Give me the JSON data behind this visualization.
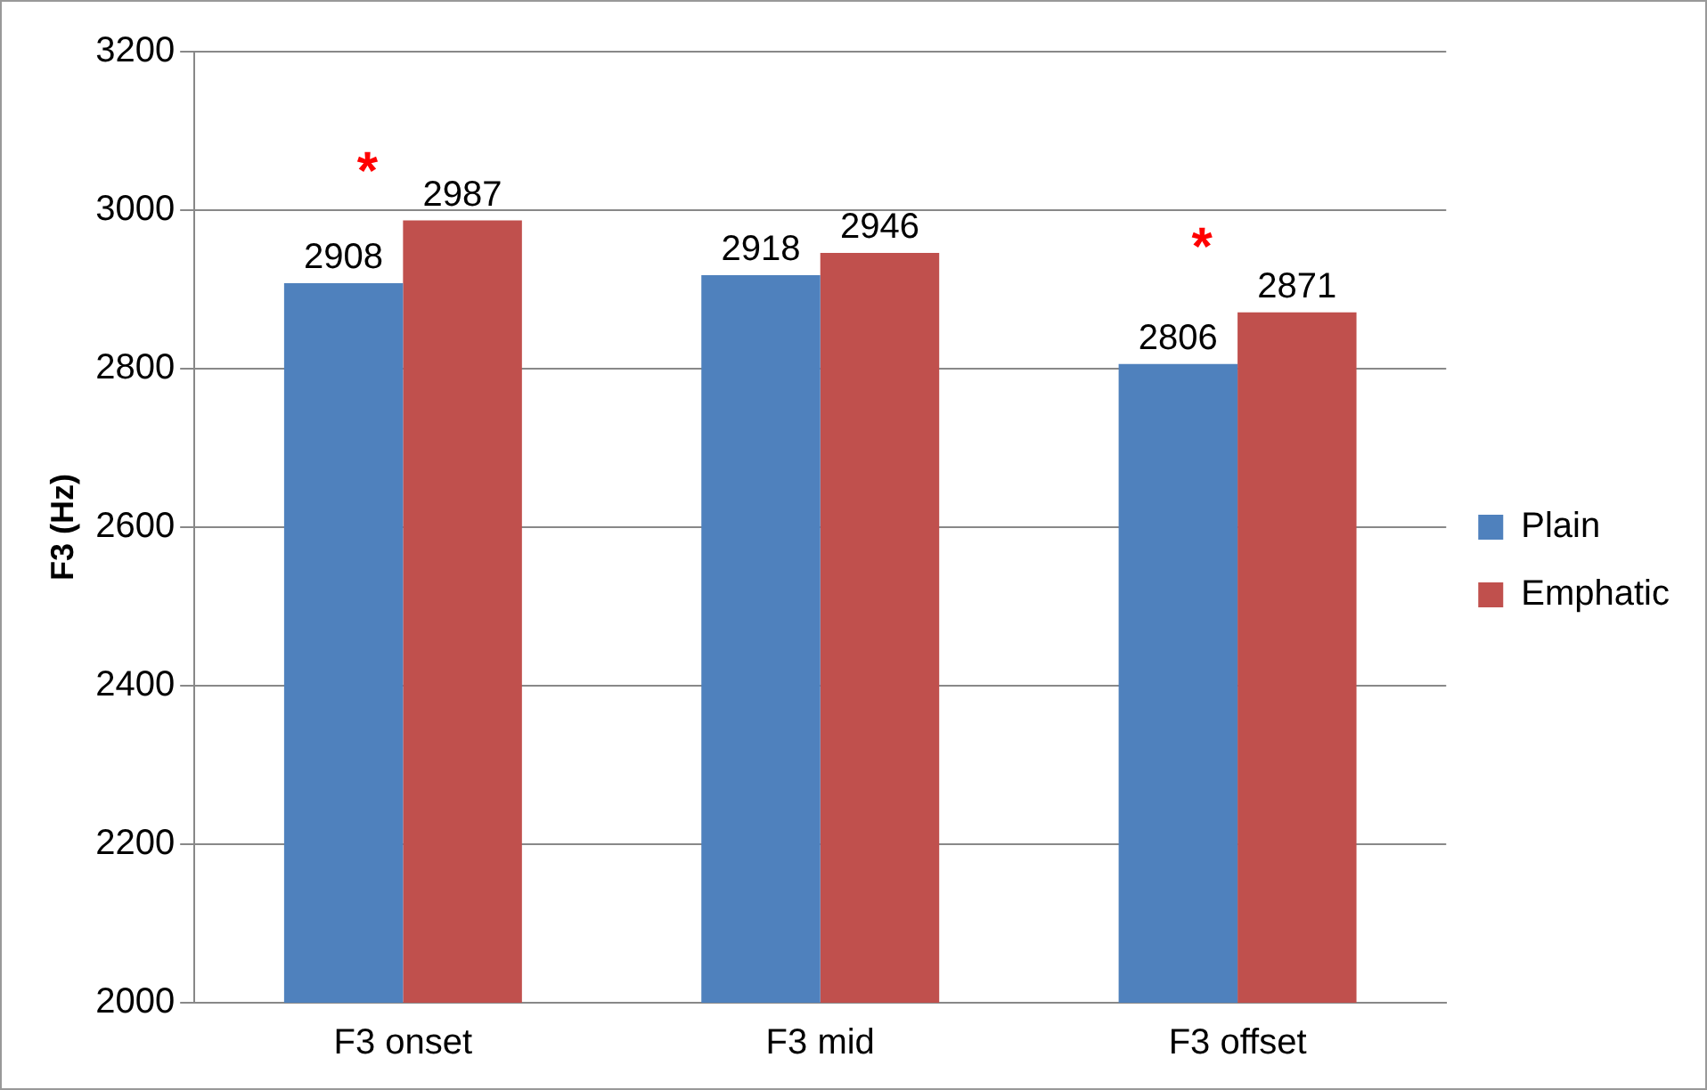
{
  "chart_data": {
    "type": "bar",
    "ylabel": "F3 (Hz)",
    "categories": [
      "F3 onset",
      "F3 mid",
      "F3 offset"
    ],
    "series": [
      {
        "name": "Plain",
        "color": "#4f81bd",
        "values": [
          2908,
          2918,
          2806
        ]
      },
      {
        "name": "Emphatic",
        "color": "#c0504d",
        "values": [
          2987,
          2946,
          2871
        ]
      }
    ],
    "ylim": [
      2000,
      3200
    ],
    "yticks": [
      2000,
      2200,
      2400,
      2600,
      2800,
      3000,
      3200
    ],
    "grid": "y",
    "legend": "right",
    "data_labels": true,
    "annotations": [
      "*",
      "*"
    ]
  }
}
